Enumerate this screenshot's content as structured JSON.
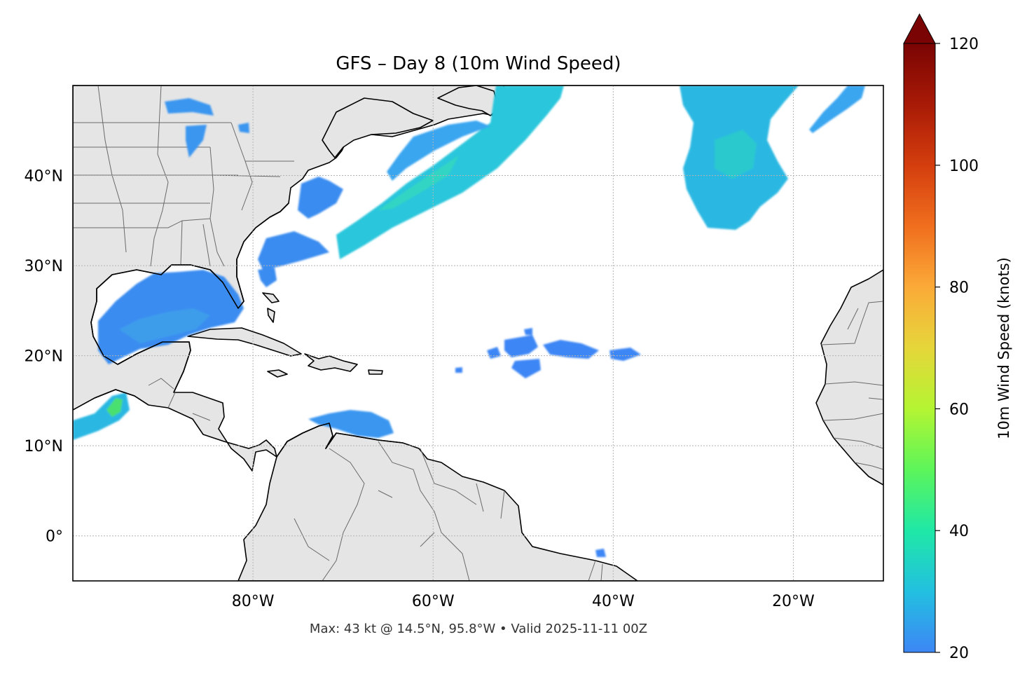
{
  "title": "GFS – Day 8 (10m Wind Speed)",
  "caption": "Max: 43 kt @ 14.5°N, 95.8°W • Valid 2025-11-11 00Z",
  "map": {
    "lon_range": [
      -100,
      -10
    ],
    "lat_range": [
      -5,
      50
    ],
    "gridlines": true,
    "land_color": "#e5e5e5",
    "ocean_color": "#ffffff",
    "lat_ticks": [
      {
        "value": 40,
        "label": "40°N"
      },
      {
        "value": 30,
        "label": "30°N"
      },
      {
        "value": 20,
        "label": "20°N"
      },
      {
        "value": 10,
        "label": "10°N"
      },
      {
        "value": 0,
        "label": "0°"
      }
    ],
    "lon_ticks": [
      {
        "value": -80,
        "label": "80°W"
      },
      {
        "value": -60,
        "label": "60°W"
      },
      {
        "value": -40,
        "label": "40°W"
      },
      {
        "value": -20,
        "label": "20°W"
      }
    ]
  },
  "colorbar": {
    "label": "10m Wind Speed (knots)",
    "min": 20,
    "max": 120,
    "extend": "max",
    "colormap": "turbo",
    "ticks": [
      {
        "value": 20,
        "label": "20"
      },
      {
        "value": 40,
        "label": "40"
      },
      {
        "value": 60,
        "label": "60"
      },
      {
        "value": 80,
        "label": "80"
      },
      {
        "value": 100,
        "label": "100"
      },
      {
        "value": 120,
        "label": "120"
      }
    ],
    "stops": [
      "#3d86f5",
      "#22c0e0",
      "#1fe8a6",
      "#5cf55a",
      "#b4f532",
      "#e6d63a",
      "#fbaa38",
      "#f06e1e",
      "#d43e0e",
      "#a81a06",
      "#7a0403"
    ]
  },
  "wind_regions": [
    {
      "name": "Gulf of Mexico",
      "color": "#3a8cf0"
    },
    {
      "name": "Gulf of Tehuantepec / Eastern Pacific",
      "color": "#2ad8c0",
      "max_kt": 43,
      "lat": 14.5,
      "lon": -95.8
    },
    {
      "name": "Western Atlantic frontal band",
      "color": "#2ac6dc"
    },
    {
      "name": "Central North Atlantic",
      "color": "#2ab8e2"
    },
    {
      "name": "Northeast Atlantic",
      "color": "#3aa6f0"
    },
    {
      "name": "Caribbean Sea (north of Venezuela)",
      "color": "#3a96f0"
    },
    {
      "name": "Central tropical Atlantic",
      "color": "#3d86f5"
    }
  ]
}
